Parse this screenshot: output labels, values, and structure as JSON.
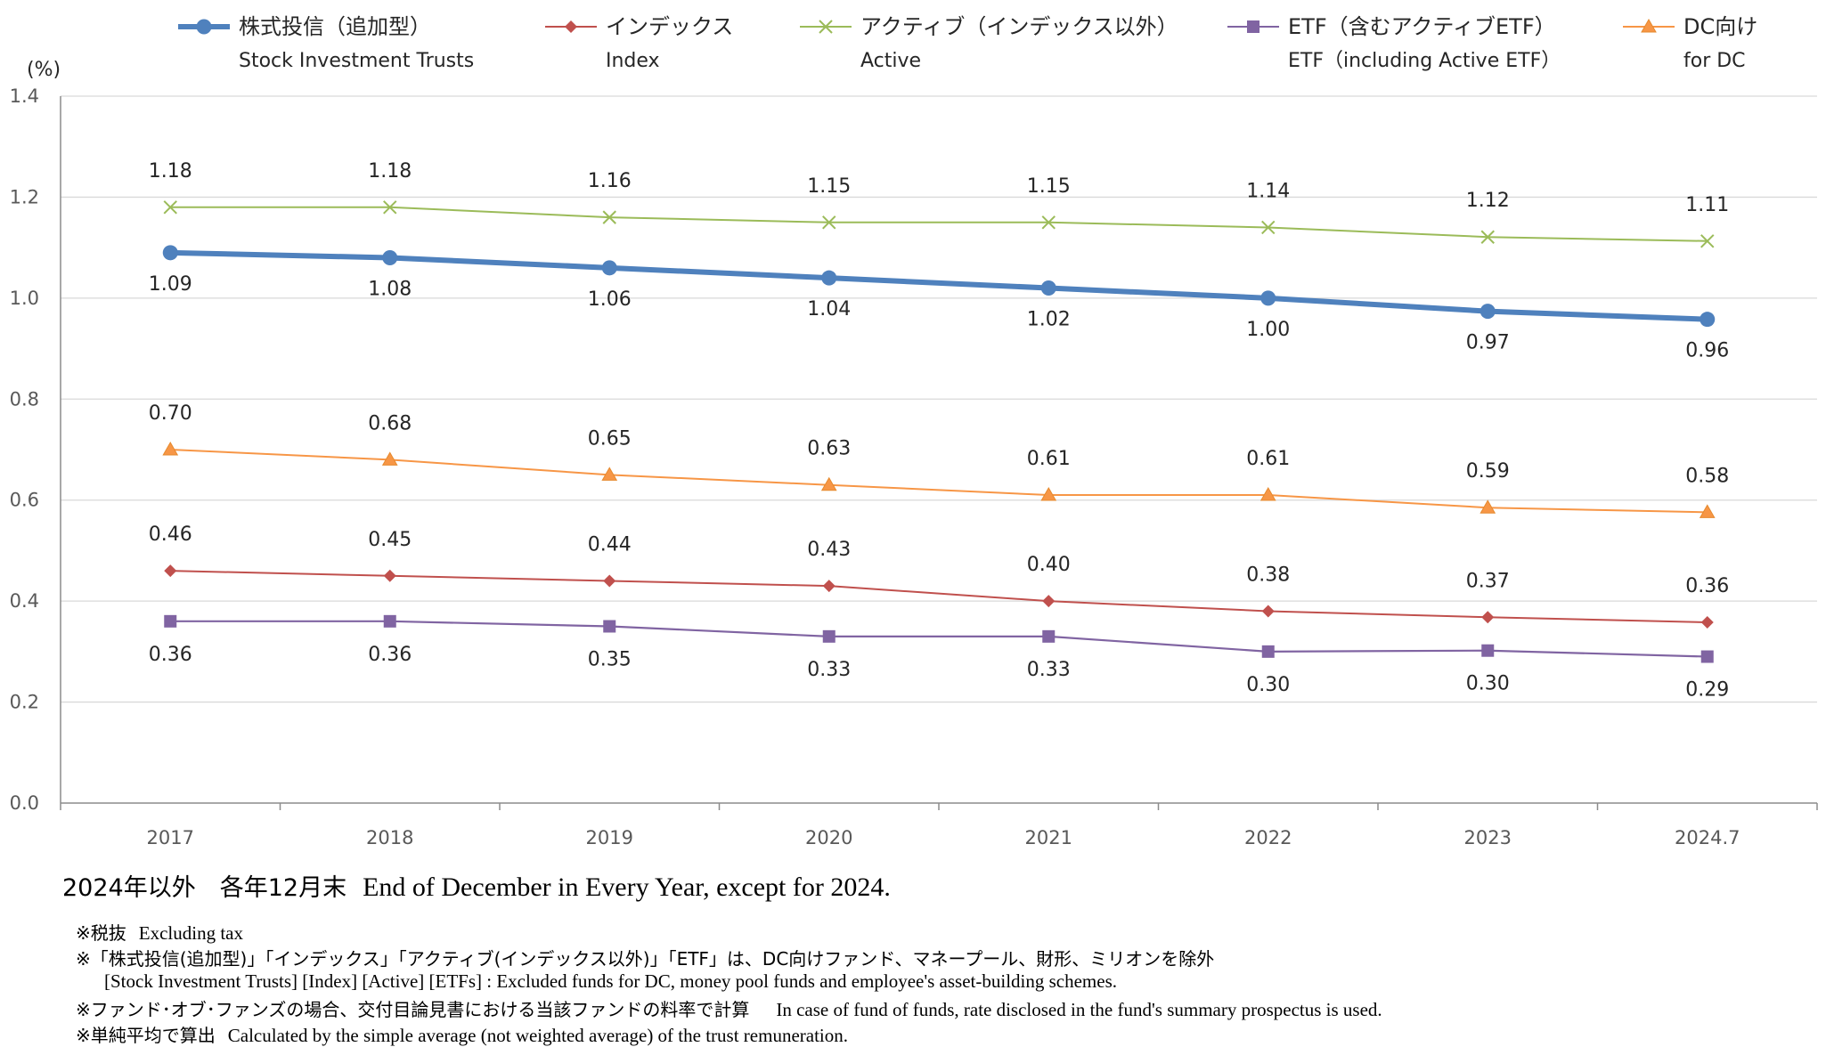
{
  "chart_data": {
    "type": "line",
    "unit": "(%)",
    "categories": [
      "2017",
      "2018",
      "2019",
      "2020",
      "2021",
      "2022",
      "2023",
      "2024.7"
    ],
    "yticks": [
      "0.0",
      "0.2",
      "0.4",
      "0.6",
      "0.8",
      "1.0",
      "1.2",
      "1.4"
    ],
    "ylim": [
      0,
      1.4
    ],
    "grid": true,
    "legend_position": "top",
    "series": [
      {
        "name": "株式投信（追加型）",
        "name_en": "Stock Investment Trusts",
        "marker": "circle",
        "color": "#4F81BD",
        "values": [
          1.09,
          1.08,
          1.06,
          1.04,
          1.02,
          1.0,
          0.974,
          0.958
        ],
        "labels": [
          "1.09",
          "1.08",
          "1.06",
          "1.04",
          "1.02",
          "1.00",
          "0.97",
          "0.96"
        ]
      },
      {
        "name": "インデックス",
        "name_en": "Index",
        "marker": "diamond",
        "color": "#C0504D",
        "values": [
          0.46,
          0.45,
          0.44,
          0.43,
          0.4,
          0.38,
          0.368,
          0.358
        ],
        "labels": [
          "0.46",
          "0.45",
          "0.44",
          "0.43",
          "0.40",
          "0.38",
          "0.37",
          "0.36"
        ]
      },
      {
        "name": "アクティブ（インデックス以外）",
        "name_en": "Active",
        "marker": "x",
        "color": "#9BBB59",
        "values": [
          1.18,
          1.18,
          1.16,
          1.15,
          1.15,
          1.14,
          1.121,
          1.113
        ],
        "labels": [
          "1.18",
          "1.18",
          "1.16",
          "1.15",
          "1.15",
          "1.14",
          "1.12",
          "1.11"
        ]
      },
      {
        "name": "ETF（含むアクティブETF）",
        "name_en": "ETF（including Active ETF）",
        "marker": "square",
        "color": "#8064A2",
        "values": [
          0.36,
          0.36,
          0.35,
          0.33,
          0.33,
          0.3,
          0.302,
          0.29
        ],
        "labels": [
          "0.36",
          "0.36",
          "0.35",
          "0.33",
          "0.33",
          "0.30",
          "0.30",
          "0.29"
        ]
      },
      {
        "name": "DC向け",
        "name_en": "for DC",
        "marker": "triangle",
        "color": "#F79646",
        "values": [
          0.7,
          0.68,
          0.65,
          0.63,
          0.61,
          0.61,
          0.585,
          0.576
        ],
        "labels": [
          "0.70",
          "0.68",
          "0.65",
          "0.63",
          "0.61",
          "0.61",
          "0.59",
          "0.58"
        ]
      }
    ]
  },
  "notes": {
    "main_jp": "2024年以外　各年12月末",
    "main_en": "End of December in Every Year, except for 2024.",
    "n1_jp": "※税抜",
    "n1_en": "Excluding tax",
    "n2_jp": "※「株式投信(追加型)」「インデックス」「アクティブ(インデックス以外)」「ETF」は、DC向けファンド、マネープール、財形、ミリオンを除外",
    "n2_en": "[Stock Investment Trusts] [Index] [Active] [ETFs] : Excluded funds for DC, money pool funds and employee's asset-building schemes.",
    "n3_jp": "※ファンド･オブ･ファンズの場合、交付目論見書における当該ファンドの料率で計算",
    "n3_en": "In case of fund of funds, rate disclosed in the fund's summary prospectus is used.",
    "n4_jp": "※単純平均で算出",
    "n4_en": "Calculated by the simple average (not weighted average) of the trust remuneration."
  }
}
